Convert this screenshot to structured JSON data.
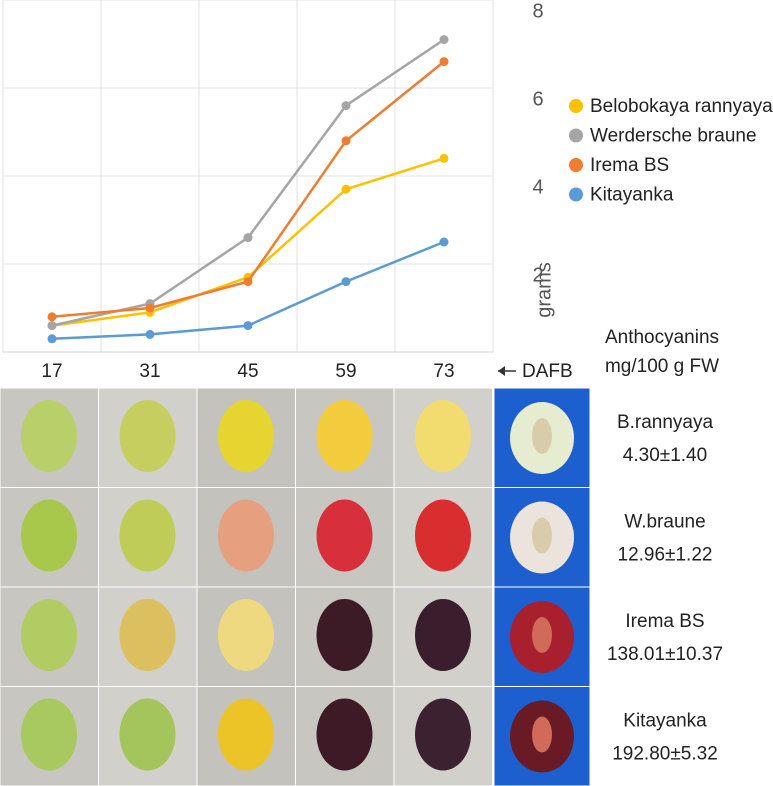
{
  "chart_data": {
    "type": "line",
    "categories": [
      "17",
      "31",
      "45",
      "59",
      "73"
    ],
    "xlabel": "DAFB",
    "ylabel": "grams",
    "ylim": [
      0,
      8
    ],
    "yticks": [
      2,
      4,
      6,
      8
    ],
    "grid": true,
    "legend": "right",
    "series": [
      {
        "name": "Belobokaya rannyaya",
        "color": "#ffc000",
        "values": [
          0.6,
          0.9,
          1.7,
          3.7,
          4.4
        ]
      },
      {
        "name": "Werdersche braune",
        "color": "#a5a5a5",
        "values": [
          0.6,
          1.1,
          2.6,
          5.6,
          7.1
        ]
      },
      {
        "name": "Irema BS",
        "color": "#ed7d31",
        "values": [
          0.8,
          1.0,
          1.6,
          4.8,
          6.6
        ]
      },
      {
        "name": "Kitayanka",
        "color": "#5b9bd5",
        "values": [
          0.3,
          0.4,
          0.6,
          1.6,
          2.5
        ]
      }
    ]
  },
  "anthocyanins": {
    "title": [
      "Anthocyanins",
      "mg/100 g FW"
    ],
    "rows": [
      {
        "name": "B.rannyaya",
        "value": "4.30±1.40"
      },
      {
        "name": "W.braune",
        "value": "12.96±1.22"
      },
      {
        "name": "Irema BS",
        "value": "138.01±10.37"
      },
      {
        "name": "Kitayanka",
        "value": "192.80±5.32"
      }
    ]
  }
}
